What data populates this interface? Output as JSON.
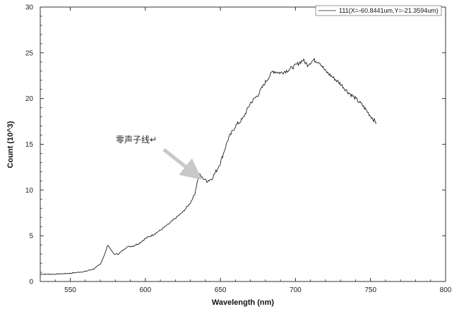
{
  "chart_data": {
    "type": "line",
    "xlabel": "Wavelength (nm)",
    "ylabel": "Count (10^3)",
    "xlim": [
      530,
      800
    ],
    "ylim": [
      0,
      30
    ],
    "x_ticks": [
      "550",
      "600",
      "650",
      "700",
      "750",
      "800"
    ],
    "y_ticks": [
      "0",
      "5",
      "10",
      "15",
      "20",
      "25",
      "30"
    ],
    "grid": false,
    "legend_position": "top-right",
    "legend_label": "111(X=-60.8441um,Y=-21.3594um)",
    "series": [
      {
        "name": "111(X=-60.8441um,Y=-21.3594um)",
        "color": "#222222",
        "x": [
          530,
          540,
          550,
          560,
          566,
          570,
          573,
          575,
          577,
          579,
          582,
          585,
          588,
          592,
          596,
          600,
          605,
          610,
          615,
          620,
          625,
          630,
          633,
          635,
          636,
          637,
          639,
          641,
          644,
          647,
          650,
          655,
          660,
          665,
          670,
          675,
          680,
          685,
          690,
          695,
          700,
          705,
          708,
          712,
          716,
          720,
          725,
          730,
          735,
          740,
          745,
          750,
          754
        ],
        "y": [
          0.8,
          0.8,
          0.9,
          1.1,
          1.4,
          1.9,
          3.0,
          4.0,
          3.5,
          3.0,
          3.0,
          3.4,
          3.8,
          3.9,
          4.2,
          4.7,
          5.1,
          5.6,
          6.2,
          6.9,
          7.6,
          8.6,
          9.6,
          11.2,
          11.8,
          11.5,
          11.2,
          11.0,
          11.2,
          12.0,
          13.0,
          15.5,
          17.0,
          17.8,
          19.5,
          20.4,
          21.8,
          23.0,
          22.8,
          23.1,
          23.6,
          24.2,
          23.7,
          24.2,
          24.0,
          23.0,
          22.3,
          21.6,
          20.7,
          20.0,
          19.2,
          18.1,
          17.3
        ]
      }
    ],
    "annotation": {
      "text": "零声子线↵",
      "points_to": {
        "x": 636,
        "y": 12
      }
    }
  }
}
